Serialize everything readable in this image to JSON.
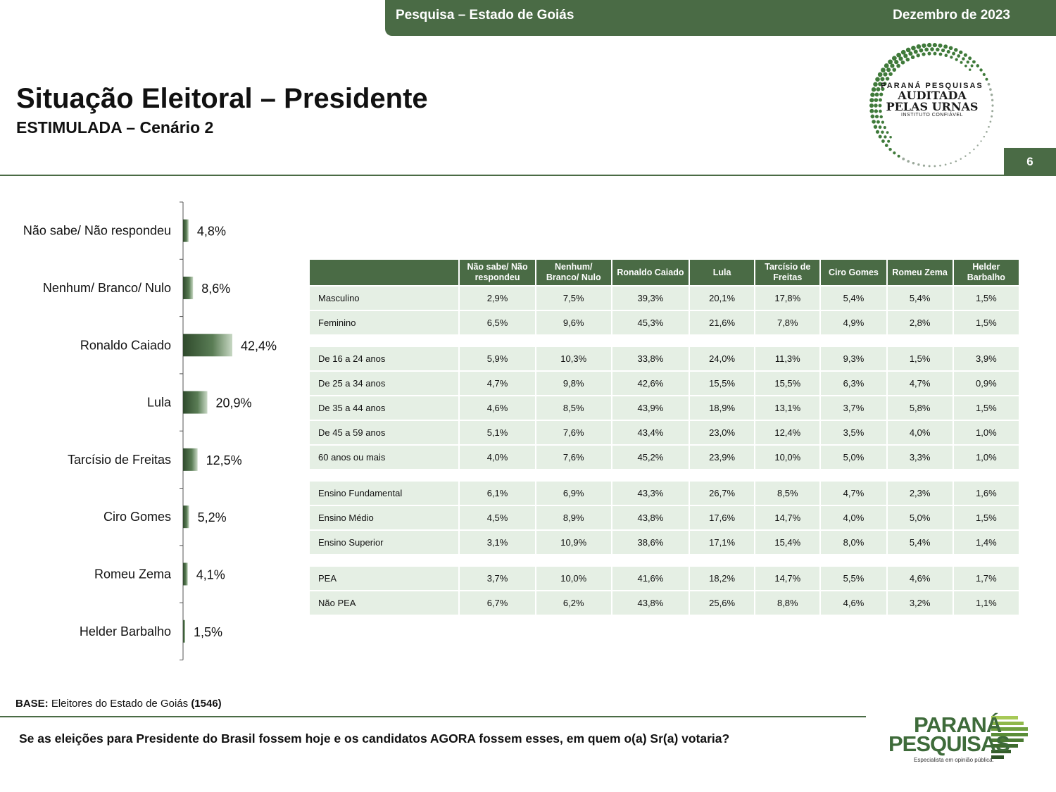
{
  "header": {
    "left": "Pesquisa – Estado de Goiás",
    "right": "Dezembro de 2023"
  },
  "title": "Situação Eleitoral – Presidente",
  "subtitle": "ESTIMULADA – Cenário 2",
  "page_number": "6",
  "seal": {
    "line1": "PARANÁ PESQUISAS",
    "line2": "AUDITADA",
    "line3": "PELAS URNAS",
    "line4": "INSTITUTO CONFIÁVEL"
  },
  "colors": {
    "brand_green": "#4a6b45",
    "table_row": "#e5efe4"
  },
  "chart_data": {
    "type": "bar",
    "orientation": "horizontal",
    "categories": [
      "Não sabe/ Não respondeu",
      "Nenhum/ Branco/ Nulo",
      "Ronaldo Caiado",
      "Lula",
      "Tarcísio de Freitas",
      "Ciro Gomes",
      "Romeu Zema",
      "Helder Barbalho"
    ],
    "values": [
      4.8,
      8.6,
      42.4,
      20.9,
      12.5,
      5.2,
      4.1,
      1.5
    ],
    "value_labels": [
      "4,8%",
      "8,6%",
      "42,4%",
      "20,9%",
      "12,5%",
      "5,2%",
      "4,1%",
      "1,5%"
    ],
    "unit": "%",
    "grid": false,
    "legend": "none"
  },
  "table": {
    "columns": [
      "Não sabe/ Não respondeu",
      "Nenhum/ Branco/ Nulo",
      "Ronaldo Caiado",
      "Lula",
      "Tarcísio de Freitas",
      "Ciro Gomes",
      "Romeu Zema",
      "Helder Barbalho"
    ],
    "groups": [
      [
        {
          "label": "Masculino",
          "values": [
            "2,9%",
            "7,5%",
            "39,3%",
            "20,1%",
            "17,8%",
            "5,4%",
            "5,4%",
            "1,5%"
          ]
        },
        {
          "label": "Feminino",
          "values": [
            "6,5%",
            "9,6%",
            "45,3%",
            "21,6%",
            "7,8%",
            "4,9%",
            "2,8%",
            "1,5%"
          ]
        }
      ],
      [
        {
          "label": "De 16 a 24 anos",
          "values": [
            "5,9%",
            "10,3%",
            "33,8%",
            "24,0%",
            "11,3%",
            "9,3%",
            "1,5%",
            "3,9%"
          ]
        },
        {
          "label": "De 25 a 34 anos",
          "values": [
            "4,7%",
            "9,8%",
            "42,6%",
            "15,5%",
            "15,5%",
            "6,3%",
            "4,7%",
            "0,9%"
          ]
        },
        {
          "label": "De 35 a 44 anos",
          "values": [
            "4,6%",
            "8,5%",
            "43,9%",
            "18,9%",
            "13,1%",
            "3,7%",
            "5,8%",
            "1,5%"
          ]
        },
        {
          "label": "De 45 a 59 anos",
          "values": [
            "5,1%",
            "7,6%",
            "43,4%",
            "23,0%",
            "12,4%",
            "3,5%",
            "4,0%",
            "1,0%"
          ]
        },
        {
          "label": "60 anos ou mais",
          "values": [
            "4,0%",
            "7,6%",
            "45,2%",
            "23,9%",
            "10,0%",
            "5,0%",
            "3,3%",
            "1,0%"
          ]
        }
      ],
      [
        {
          "label": "Ensino Fundamental",
          "values": [
            "6,1%",
            "6,9%",
            "43,3%",
            "26,7%",
            "8,5%",
            "4,7%",
            "2,3%",
            "1,6%"
          ]
        },
        {
          "label": "Ensino Médio",
          "values": [
            "4,5%",
            "8,9%",
            "43,8%",
            "17,6%",
            "14,7%",
            "4,0%",
            "5,0%",
            "1,5%"
          ]
        },
        {
          "label": "Ensino Superior",
          "values": [
            "3,1%",
            "10,9%",
            "38,6%",
            "17,1%",
            "15,4%",
            "8,0%",
            "5,4%",
            "1,4%"
          ]
        }
      ],
      [
        {
          "label": "PEA",
          "values": [
            "3,7%",
            "10,0%",
            "41,6%",
            "18,2%",
            "14,7%",
            "5,5%",
            "4,6%",
            "1,7%"
          ]
        },
        {
          "label": "Não PEA",
          "values": [
            "6,7%",
            "6,2%",
            "43,8%",
            "25,6%",
            "8,8%",
            "4,6%",
            "3,2%",
            "1,1%"
          ]
        }
      ]
    ]
  },
  "footer": {
    "base_label": "BASE:",
    "base_text": "Eleitores do Estado de Goiás",
    "base_count": "(1546)",
    "question": "Se as eleições para Presidente do Brasil fossem hoje e os candidatos AGORA fossem esses, em quem o(a) Sr(a) votaria?"
  },
  "logo": {
    "line1": "PARANÁ",
    "line2": "PESQUISAS",
    "tagline": "Especialista em opinião pública."
  }
}
